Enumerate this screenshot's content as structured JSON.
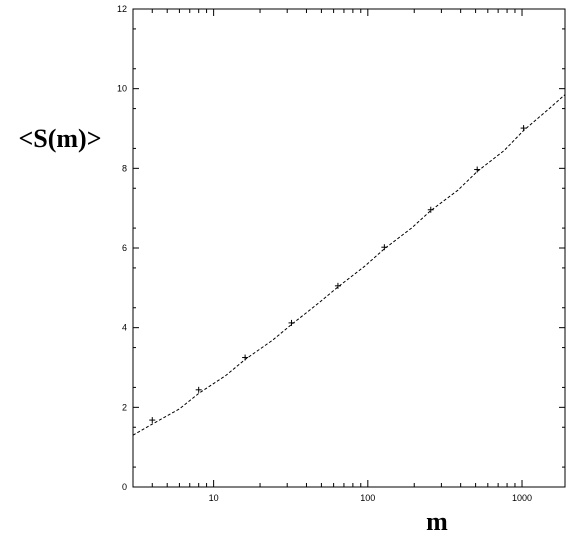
{
  "chart_data": {
    "type": "scatter",
    "xlabel": "m",
    "ylabel": "<S(m)>",
    "x_scale": "log",
    "xlim": [
      3,
      1900
    ],
    "ylim": [
      0,
      12
    ],
    "x_ticks": [
      10,
      100,
      1000
    ],
    "x_tick_labels": [
      "10",
      "100",
      "1000"
    ],
    "y_ticks": [
      0,
      2,
      4,
      6,
      8,
      10,
      12
    ],
    "y_tick_labels": [
      "0",
      "2",
      "4",
      "6",
      "8",
      "10",
      "12"
    ],
    "grid": false,
    "legend": "none",
    "series": [
      {
        "marker": "plus",
        "color": "#000000",
        "x": [
          4,
          8,
          16,
          32,
          64,
          128,
          256,
          512,
          1024
        ],
        "y": [
          1.68,
          2.44,
          3.25,
          4.12,
          5.05,
          6.02,
          6.96,
          7.97,
          9.01
        ]
      }
    ],
    "fit_curve": {
      "style": "dashed",
      "color": "#000000",
      "x": [
        3,
        4,
        6,
        8,
        12,
        16,
        24,
        32,
        48,
        64,
        96,
        128,
        192,
        256,
        384,
        512,
        768,
        1024,
        1500,
        1900
      ],
      "y": [
        1.3,
        1.58,
        1.96,
        2.35,
        2.8,
        3.2,
        3.68,
        4.08,
        4.62,
        5.02,
        5.55,
        5.98,
        6.5,
        6.94,
        7.45,
        7.92,
        8.45,
        8.95,
        9.5,
        9.85
      ]
    }
  }
}
